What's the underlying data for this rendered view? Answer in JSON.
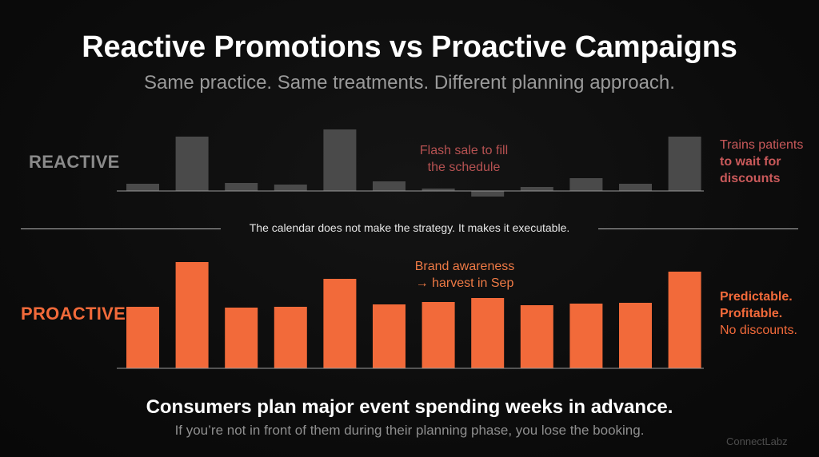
{
  "title": "Reactive Promotions vs Proactive Campaigns",
  "subtitle": "Same practice. Same treatments. Different planning approach.",
  "divider_text": "The calendar does not make the strategy. It makes it executable.",
  "footer": {
    "headline": "Consumers plan major event spending weeks in advance.",
    "subline": "If you’re not in front of them during their planning phase, you lose the booking."
  },
  "brand": "ConnectLabz",
  "reactive": {
    "label": "REACTIVE",
    "annotation_line1": "Flash sale to fill",
    "annotation_line2": "the schedule",
    "note_line1": "Trains patients",
    "note_line2": "to wait for",
    "note_line3": "discounts"
  },
  "proactive": {
    "label": "PROACTIVE",
    "annotation_line1": "Brand awareness",
    "annotation_line2": "→ harvest in Sep",
    "note_line1": "Predictable.",
    "note_line2": "Profitable.",
    "note_line3": "No discounts."
  },
  "colors": {
    "background": "#0c0c0c",
    "reactive_bar": "#4a4a4a",
    "reactive_label": "#8a8a8a",
    "reactive_note": "#c9595a",
    "proactive_bar": "#f26a3a",
    "proactive_label": "#f26a3a",
    "axis": "#9a9a9a"
  },
  "chart_data": [
    {
      "type": "bar",
      "name": "REACTIVE",
      "categories": [
        "1",
        "2",
        "3",
        "4",
        "5",
        "6",
        "7",
        "8",
        "9",
        "10",
        "11",
        "12"
      ],
      "values": [
        9,
        68,
        10,
        8,
        77,
        12,
        3,
        -7,
        5,
        16,
        9,
        68
      ],
      "ylim": [
        -10,
        80
      ]
    },
    {
      "type": "bar",
      "name": "PROACTIVE",
      "categories": [
        "1",
        "2",
        "3",
        "4",
        "5",
        "6",
        "7",
        "8",
        "9",
        "10",
        "11",
        "12"
      ],
      "values": [
        77,
        133,
        76,
        77,
        112,
        80,
        83,
        88,
        79,
        81,
        82,
        121
      ],
      "ylim": [
        0,
        135
      ]
    }
  ]
}
